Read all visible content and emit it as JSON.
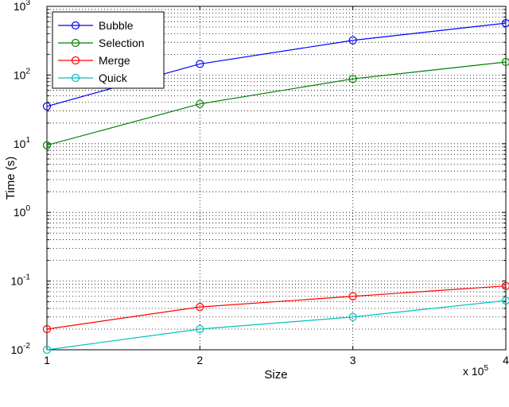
{
  "chart_data": {
    "type": "line",
    "xlabel": "Size",
    "ylabel": "Time (s)",
    "x_multiplier_label": "x 10",
    "x_multiplier_exponent": "5",
    "x": [
      1,
      2,
      3,
      4
    ],
    "x_ticks": [
      "1",
      "2",
      "3",
      "4"
    ],
    "xlim": [
      1,
      4
    ],
    "y_scale": "log",
    "ylim": [
      0.01,
      1000
    ],
    "y_tick_base": "10",
    "y_ticks": [
      {
        "value": 0.01,
        "exp": "-2"
      },
      {
        "value": 0.1,
        "exp": "-1"
      },
      {
        "value": 1,
        "exp": "0"
      },
      {
        "value": 10,
        "exp": "1"
      },
      {
        "value": 100,
        "exp": "2"
      },
      {
        "value": 1000,
        "exp": "3"
      }
    ],
    "grid": true,
    "legend_position": "top-left",
    "series": [
      {
        "name": "Bubble",
        "color": "#0000ff",
        "values": [
          35,
          145,
          320,
          570
        ]
      },
      {
        "name": "Selection",
        "color": "#008000",
        "values": [
          9.5,
          38,
          88,
          155
        ]
      },
      {
        "name": "Merge",
        "color": "#ff0000",
        "values": [
          0.02,
          0.042,
          0.06,
          0.085
        ]
      },
      {
        "name": "Quick",
        "color": "#00bfbf",
        "values": [
          0.01,
          0.02,
          0.03,
          0.052
        ]
      }
    ]
  }
}
